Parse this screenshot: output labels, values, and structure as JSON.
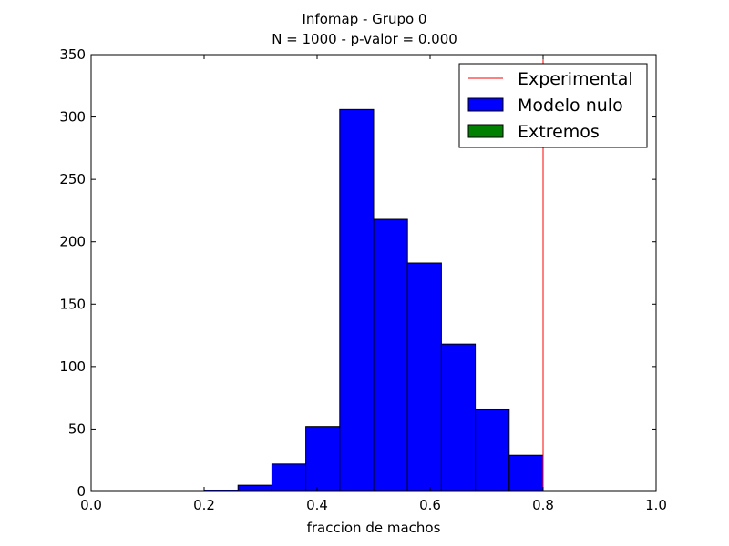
{
  "chart_data": {
    "type": "bar",
    "title": "Infomap - Grupo 0",
    "subtitle": "N = 1000 - p-valor = 0.000",
    "xlabel": "fraccion de machos",
    "ylabel": "",
    "xlim": [
      0.0,
      1.0
    ],
    "ylim": [
      0,
      350
    ],
    "xticks": [
      "0.0",
      "0.2",
      "0.4",
      "0.6",
      "0.8",
      "1.0"
    ],
    "yticks": [
      "0",
      "50",
      "100",
      "150",
      "200",
      "250",
      "300",
      "350"
    ],
    "grid": false,
    "legend_position": "top-right",
    "experimental": {
      "name": "Experimental",
      "x": 0.8,
      "color": "#ff0000"
    },
    "series": [
      {
        "name": "Modelo nulo",
        "color": "#0000ff",
        "bins": [
          {
            "x0": 0.0,
            "x1": 0.1,
            "value": 0
          },
          {
            "x0": 0.2,
            "x1": 0.26,
            "value": 1
          },
          {
            "x0": 0.26,
            "x1": 0.32,
            "value": 5
          },
          {
            "x0": 0.32,
            "x1": 0.38,
            "value": 22
          },
          {
            "x0": 0.38,
            "x1": 0.44,
            "value": 52
          },
          {
            "x0": 0.44,
            "x1": 0.5,
            "value": 306
          },
          {
            "x0": 0.5,
            "x1": 0.56,
            "value": 218
          },
          {
            "x0": 0.56,
            "x1": 0.62,
            "value": 183
          },
          {
            "x0": 0.62,
            "x1": 0.68,
            "value": 118
          },
          {
            "x0": 0.68,
            "x1": 0.74,
            "value": 66
          },
          {
            "x0": 0.74,
            "x1": 0.8,
            "value": 29
          }
        ]
      },
      {
        "name": "Extremos",
        "color": "#008000",
        "bins": []
      }
    ]
  }
}
